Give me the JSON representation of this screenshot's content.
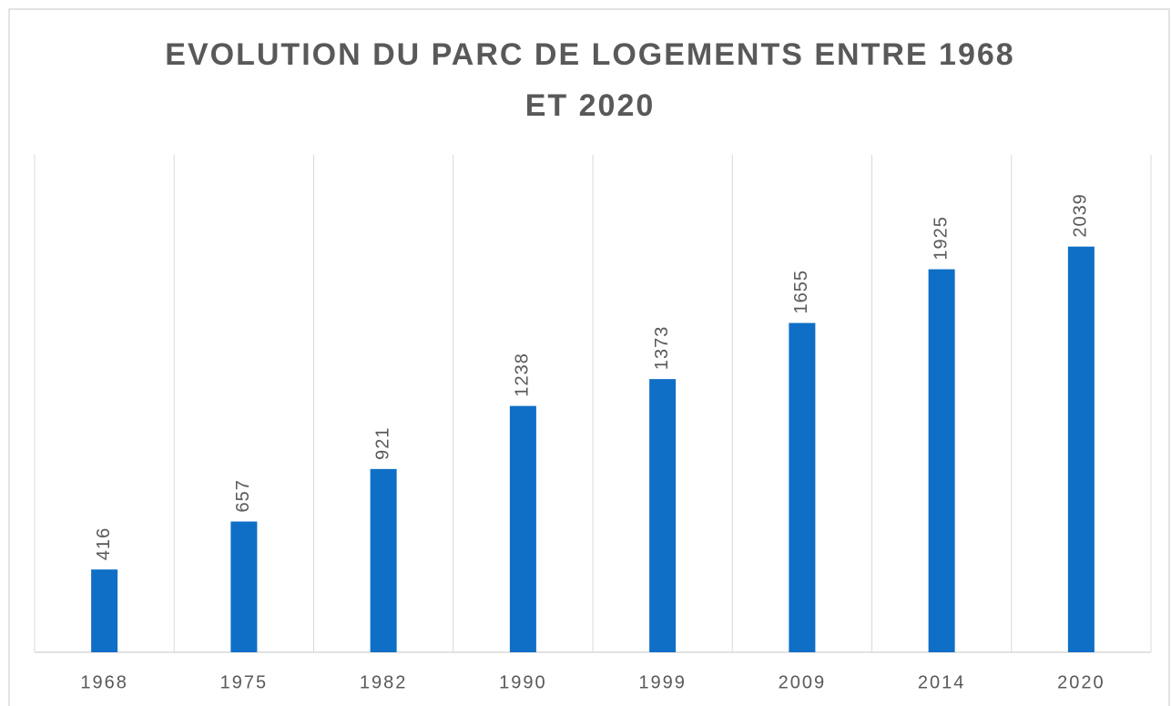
{
  "chart_data": {
    "type": "bar",
    "title": "EVOLUTION DU PARC DE LOGEMENTS ENTRE 1968 ET 2020",
    "categories": [
      "1968",
      "1975",
      "1982",
      "1990",
      "1999",
      "2009",
      "2014",
      "2020"
    ],
    "values": [
      416,
      657,
      921,
      1238,
      1373,
      1655,
      1925,
      2039
    ],
    "color": "#0f6fc6",
    "ylim": [
      0,
      2500
    ]
  }
}
